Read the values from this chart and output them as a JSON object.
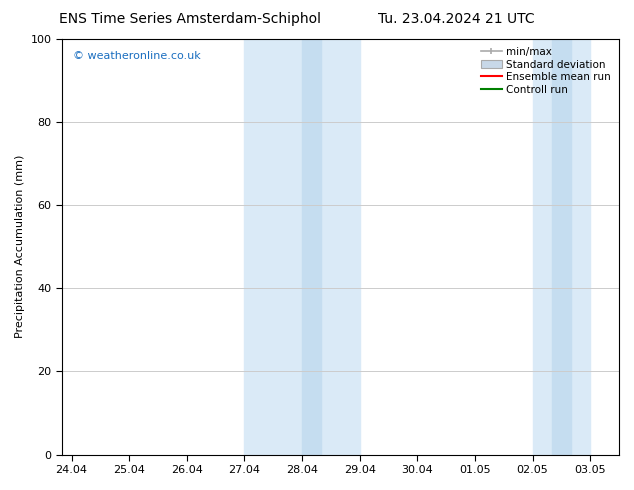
{
  "title_left": "ENS Time Series Amsterdam-Schiphol",
  "title_right": "Tu. 23.04.2024 21 UTC",
  "ylabel": "Precipitation Accumulation (mm)",
  "ylim": [
    0,
    100
  ],
  "yticks": [
    0,
    20,
    40,
    60,
    80,
    100
  ],
  "background_color": "#ffffff",
  "plot_bg_color": "#ffffff",
  "watermark_text": "© weatheronline.co.uk",
  "watermark_color": "#1a6ec0",
  "shaded_bands": [
    {
      "x_start": 9,
      "x_end": 15,
      "color": "#daeaf7"
    },
    {
      "x_start": 24,
      "x_end": 27,
      "color": "#daeaf7"
    }
  ],
  "inner_bands": [
    {
      "x_start": 12,
      "x_end": 13,
      "color": "#c5ddf0"
    },
    {
      "x_start": 25,
      "x_end": 26,
      "color": "#c5ddf0"
    }
  ],
  "x_tick_labels": [
    "24.04",
    "25.04",
    "26.04",
    "27.04",
    "28.04",
    "29.04",
    "30.04",
    "01.05",
    "02.05",
    "03.05"
  ],
  "x_tick_positions": [
    0,
    3,
    6,
    9,
    12,
    15,
    18,
    21,
    24,
    27
  ],
  "xlim_start": -0.5,
  "xlim_end": 28.5,
  "grid_color": "#cccccc",
  "tick_label_fontsize": 8,
  "title_fontsize": 10,
  "ylabel_fontsize": 8,
  "legend_color_minmax": "#aaaaaa",
  "legend_color_std": "#c8d8e8",
  "legend_color_ens": "#ff0000",
  "legend_color_ctrl": "#008000"
}
